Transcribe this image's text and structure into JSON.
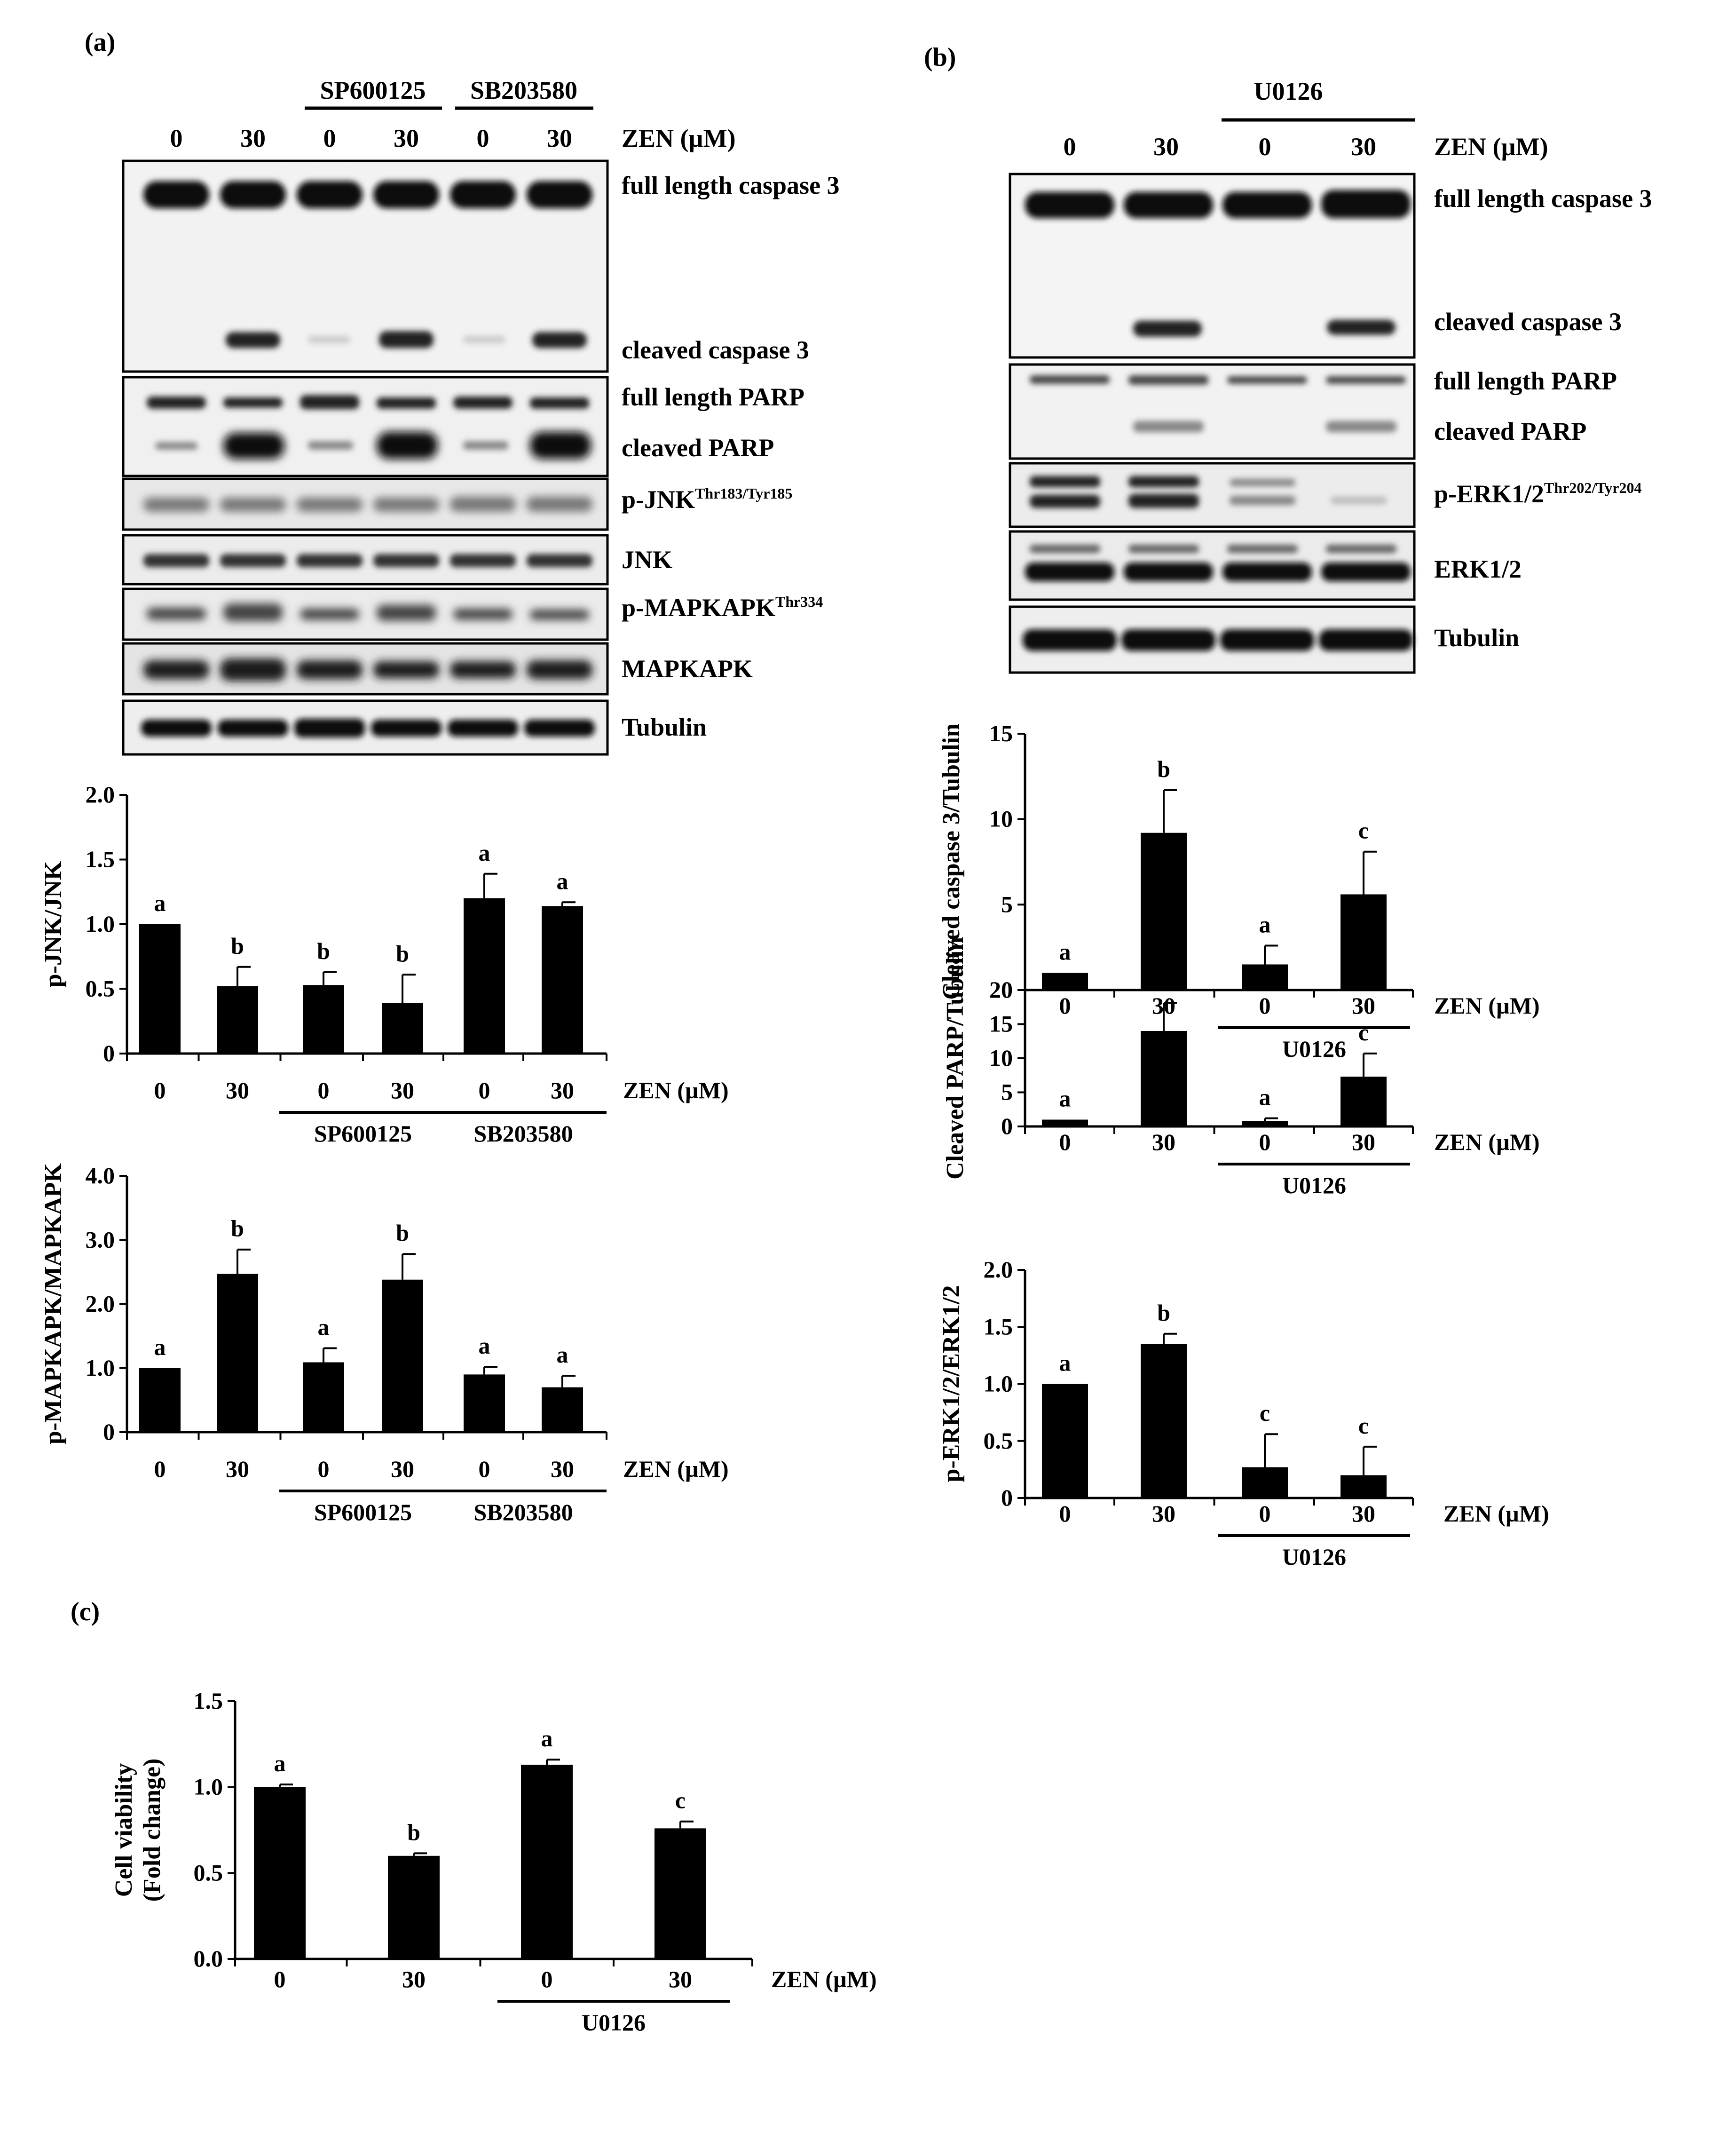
{
  "panel_labels": {
    "a": "(a)",
    "b": "(b)",
    "c": "(c)"
  },
  "blot_a": {
    "inhibitors": [
      "SP600125",
      "SB203580"
    ],
    "doses": [
      "0",
      "30",
      "0",
      "30",
      "0",
      "30"
    ],
    "dose_label": "ZEN (µM)",
    "bands": {
      "full_caspase": "full length caspase 3",
      "cleaved_caspase": "cleaved caspase 3",
      "full_parp": "full length PARP",
      "cleaved_parp": "cleaved  PARP",
      "pjnk": "p-JNK",
      "pjnk_sup": "Thr183/Tyr185",
      "jnk": "JNK",
      "pmk": "p-MAPKAPK",
      "pmk_sup": "Thr334",
      "mk": "MAPKAPK",
      "tub": "Tubulin"
    }
  },
  "blot_b": {
    "inhibitor": "U0126",
    "doses": [
      "0",
      "30",
      "0",
      "30"
    ],
    "dose_label": "ZEN (µM)",
    "bands": {
      "full_caspase": "full length caspase 3",
      "cleaved_caspase": "cleaved caspase 3",
      "full_parp": "full length PARP",
      "cleaved_parp": "cleaved  PARP",
      "perk": "p-ERK1/2",
      "perk_sup": "Thr202/Tyr204",
      "erk": "ERK1/2",
      "tub": "Tubulin"
    }
  },
  "chart_data": [
    {
      "id": "pjnk",
      "type": "bar",
      "ylabel": "p-JNK/JNK",
      "xlabel": "ZEN (µM)",
      "categories": [
        "0",
        "30",
        "0",
        "30",
        "0",
        "30"
      ],
      "groups": [
        {
          "label": "SP600125",
          "from": 2,
          "to": 3
        },
        {
          "label": "SB203580",
          "from": 4,
          "to": 5
        }
      ],
      "values": [
        1.0,
        0.52,
        0.53,
        0.39,
        1.2,
        1.14
      ],
      "errors": [
        0,
        0.15,
        0.1,
        0.22,
        0.19,
        0.03
      ],
      "letters": [
        "a",
        "b",
        "b",
        "b",
        "a",
        "a"
      ],
      "yticks": [
        "0",
        "0.5",
        "1.0",
        "1.5",
        "2.0"
      ],
      "ylim": [
        0,
        2.0
      ]
    },
    {
      "id": "pmapkapk",
      "type": "bar",
      "ylabel": "p-MAPKAPK/MAPKAPK",
      "xlabel": "ZEN (µM)",
      "categories": [
        "0",
        "30",
        "0",
        "30",
        "0",
        "30"
      ],
      "groups": [
        {
          "label": "SP600125",
          "from": 2,
          "to": 3
        },
        {
          "label": "SB203580",
          "from": 4,
          "to": 5
        }
      ],
      "values": [
        1.0,
        2.47,
        1.09,
        2.38,
        0.9,
        0.7
      ],
      "errors": [
        0,
        0.38,
        0.22,
        0.4,
        0.12,
        0.18
      ],
      "letters": [
        "a",
        "b",
        "a",
        "b",
        "a",
        "a"
      ],
      "yticks": [
        "0",
        "1.0",
        "2.0",
        "3.0",
        "4.0"
      ],
      "ylim": [
        0,
        4.0
      ]
    },
    {
      "id": "cleaved-caspase",
      "type": "bar",
      "ylabel": "Cleaved caspase 3/Tubulin",
      "xlabel": "ZEN (µM)",
      "categories": [
        "0",
        "30",
        "0",
        "30"
      ],
      "groups": [
        {
          "label": "U0126",
          "from": 2,
          "to": 3
        }
      ],
      "values": [
        1.0,
        9.2,
        1.5,
        5.6
      ],
      "errors": [
        0,
        2.5,
        1.1,
        2.5
      ],
      "letters": [
        "a",
        "b",
        "a",
        "c"
      ],
      "yticks": [
        "0",
        "5",
        "10",
        "15"
      ],
      "ylim": [
        0,
        15
      ]
    },
    {
      "id": "cleaved-parp",
      "type": "bar",
      "ylabel": "Cleaved PARP/Tubulin",
      "xlabel": "ZEN (µM)",
      "categories": [
        "0",
        "30",
        "0",
        "30"
      ],
      "groups": [
        {
          "label": "U0126",
          "from": 2,
          "to": 3
        }
      ],
      "values": [
        1.0,
        14.0,
        0.8,
        7.3
      ],
      "errors": [
        0,
        4.1,
        0.4,
        3.4
      ],
      "letters": [
        "a",
        "b",
        "a",
        "c"
      ],
      "yticks": [
        "0",
        "5",
        "10",
        "15",
        "20"
      ],
      "ylim": [
        0,
        20
      ]
    },
    {
      "id": "perk",
      "type": "bar",
      "ylabel": "p-ERK1/2/ERK1/2",
      "xlabel": "ZEN (µM)",
      "categories": [
        "0",
        "30",
        "0",
        "30"
      ],
      "groups": [
        {
          "label": "U0126",
          "from": 2,
          "to": 3
        }
      ],
      "values": [
        1.0,
        1.35,
        0.27,
        0.2
      ],
      "errors": [
        0,
        0.09,
        0.29,
        0.25
      ],
      "letters": [
        "a",
        "b",
        "c",
        "c"
      ],
      "yticks": [
        "0",
        "0.5",
        "1.0",
        "1.5",
        "2.0"
      ],
      "ylim": [
        0,
        2.0
      ]
    },
    {
      "id": "viability",
      "type": "bar",
      "ylabel": "Cell viability",
      "ylabel2": "(Fold change)",
      "xlabel": "ZEN (µM)",
      "categories": [
        "0",
        "30",
        "0",
        "30"
      ],
      "groups": [
        {
          "label": "U0126",
          "from": 2,
          "to": 3
        }
      ],
      "values": [
        1.0,
        0.6,
        1.13,
        0.76
      ],
      "errors": [
        0.015,
        0.015,
        0.03,
        0.04
      ],
      "letters": [
        "a",
        "b",
        "a",
        "c"
      ],
      "yticks": [
        "0.0",
        "0.5",
        "1.0",
        "1.5"
      ],
      "ylim": [
        0,
        1.5
      ]
    }
  ]
}
